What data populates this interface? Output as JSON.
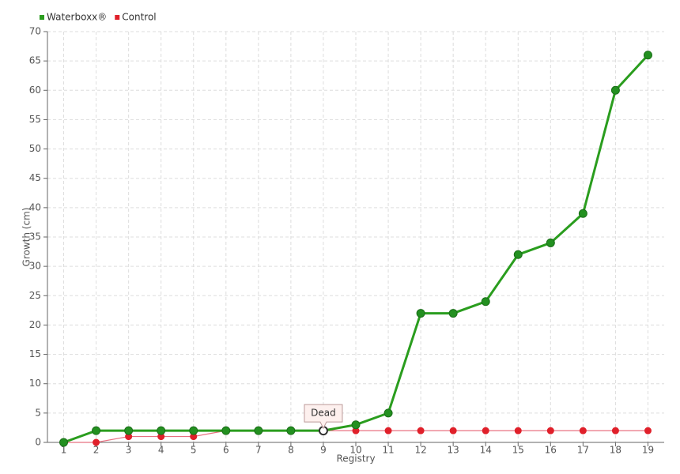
{
  "chart_data": {
    "type": "line",
    "x_label": "Registry",
    "y_label": "Growth (cm)",
    "categories": [
      "1",
      "2",
      "3",
      "4",
      "5",
      "6",
      "7",
      "8",
      "9",
      "10",
      "11",
      "12",
      "13",
      "14",
      "15",
      "16",
      "17",
      "18",
      "19"
    ],
    "series": [
      {
        "name": "Waterboxx®",
        "color": "#2a9d1e",
        "values": [
          0,
          2,
          2,
          2,
          2,
          2,
          2,
          2,
          2,
          3,
          5,
          22,
          22,
          24,
          32,
          34,
          39,
          60,
          66
        ]
      },
      {
        "name": "Control",
        "color": "#e0202a",
        "values": [
          0,
          0,
          1,
          1,
          1,
          2,
          2,
          2,
          2,
          2,
          2,
          2,
          2,
          2,
          2,
          2,
          2,
          2,
          2
        ]
      }
    ],
    "annotation": {
      "text": "Dead",
      "x": "9",
      "y": 2
    },
    "ylim": [
      0,
      70
    ],
    "yticks": [
      0,
      5,
      10,
      15,
      20,
      25,
      30,
      35,
      40,
      45,
      50,
      55,
      60,
      65,
      70
    ],
    "grid": true,
    "legend": "top-left"
  }
}
